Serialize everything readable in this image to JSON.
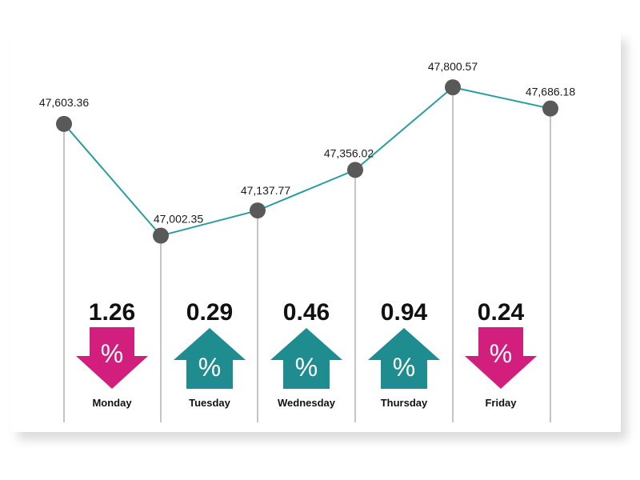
{
  "chart_data": {
    "type": "line",
    "categories": [
      "Monday",
      "Tuesday",
      "Wednesday",
      "Thursday",
      "Friday",
      ""
    ],
    "values": [
      47603.36,
      47002.35,
      47137.77,
      47356.02,
      47800.57,
      47686.18
    ],
    "point_labels": [
      "47,603.36",
      "47,002.35",
      "47,137.77",
      "47,356.02",
      "47,800.57",
      "47,686.18"
    ],
    "ylim": [
      46600,
      47900
    ],
    "line_color": "#2a9d9f",
    "point_color": "#595959",
    "daily_change": [
      {
        "day": "Monday",
        "value": "1.26",
        "direction": "down",
        "symbol": "%"
      },
      {
        "day": "Tuesday",
        "value": "0.29",
        "direction": "up",
        "symbol": "%"
      },
      {
        "day": "Wednesday",
        "value": "0.46",
        "direction": "up",
        "symbol": "%"
      },
      {
        "day": "Thursday",
        "value": "0.94",
        "direction": "up",
        "symbol": "%"
      },
      {
        "day": "Friday",
        "value": "0.24",
        "direction": "down",
        "symbol": "%"
      }
    ],
    "colors": {
      "up": "#1f8c8f",
      "down": "#d21f7d"
    }
  }
}
